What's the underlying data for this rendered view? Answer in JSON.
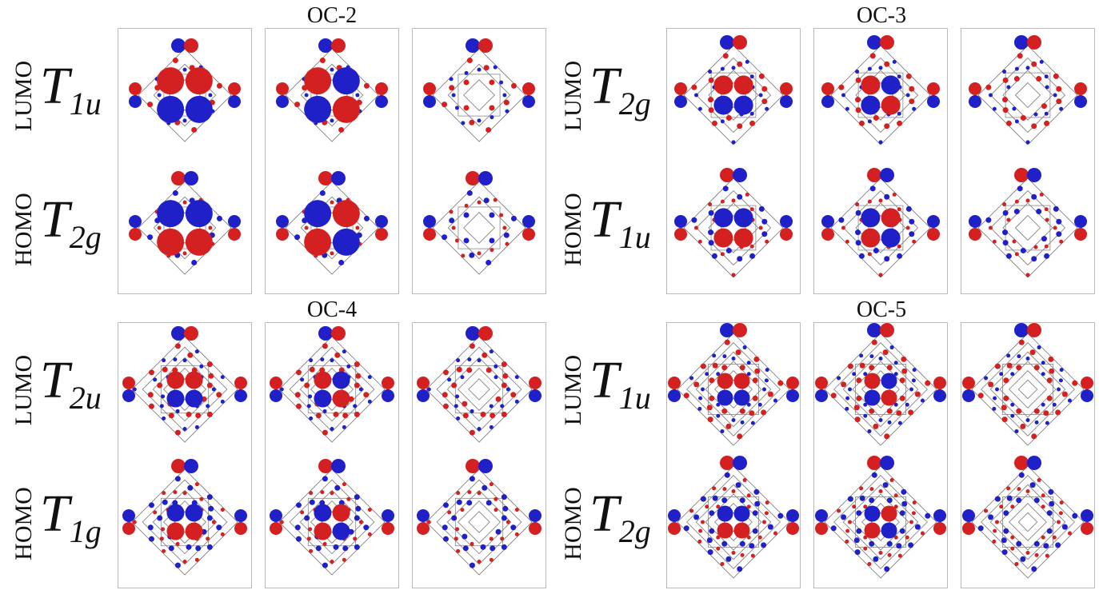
{
  "panels": [
    {
      "title": "OC-2",
      "rows": [
        {
          "label": "LUMO",
          "symmetry": {
            "main": "T",
            "sub": "1u"
          }
        },
        {
          "label": "HOMO",
          "symmetry": {
            "main": "T",
            "sub": "2g"
          }
        }
      ]
    },
    {
      "title": "OC-3",
      "rows": [
        {
          "label": "LUMO",
          "symmetry": {
            "main": "T",
            "sub": "2g"
          }
        },
        {
          "label": "HOMO",
          "symmetry": {
            "main": "T",
            "sub": "1u"
          }
        }
      ]
    },
    {
      "title": "OC-4",
      "rows": [
        {
          "label": "LUMO",
          "symmetry": {
            "main": "T",
            "sub": "2u"
          }
        },
        {
          "label": "HOMO",
          "symmetry": {
            "main": "T",
            "sub": "1g"
          }
        }
      ]
    },
    {
      "title": "OC-5",
      "rows": [
        {
          "label": "LUMO",
          "symmetry": {
            "main": "T",
            "sub": "1u"
          }
        },
        {
          "label": "HOMO",
          "symmetry": {
            "main": "T",
            "sub": "2g"
          }
        }
      ]
    }
  ]
}
